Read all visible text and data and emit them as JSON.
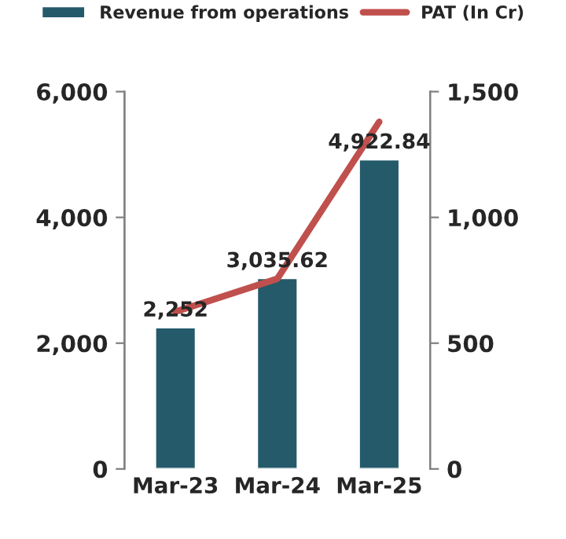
{
  "chart_data": {
    "type": "bar",
    "categories": [
      "Mar-23",
      "Mar-24",
      "Mar-25"
    ],
    "series": [
      {
        "name": "Revenue from operations",
        "color": "#245a6a",
        "values": [
          2252,
          3035.62,
          4922.84
        ],
        "value_labels": [
          "2,252",
          "3,035.62",
          "4,922.84"
        ]
      },
      {
        "name": "PAT (In Cr)",
        "type": "line",
        "axis": "y2",
        "color": "#c0504d",
        "values": [
          625,
          756,
          1380
        ]
      }
    ],
    "ylim": [
      0,
      6000
    ],
    "yticks": [
      {
        "value": 0,
        "label": "0"
      },
      {
        "value": 2000,
        "label": "2,000"
      },
      {
        "value": 4000,
        "label": "4,000"
      },
      {
        "value": 6000,
        "label": "6,000"
      }
    ],
    "y2lim": [
      0,
      1500
    ],
    "y2ticks": [
      {
        "value": 0,
        "label": "0"
      },
      {
        "value": 500,
        "label": "500"
      },
      {
        "value": 1000,
        "label": "1,000"
      },
      {
        "value": 1500,
        "label": "1,500"
      }
    ],
    "legend": "top",
    "grid": false,
    "marker": "none",
    "line_style": "solid"
  }
}
